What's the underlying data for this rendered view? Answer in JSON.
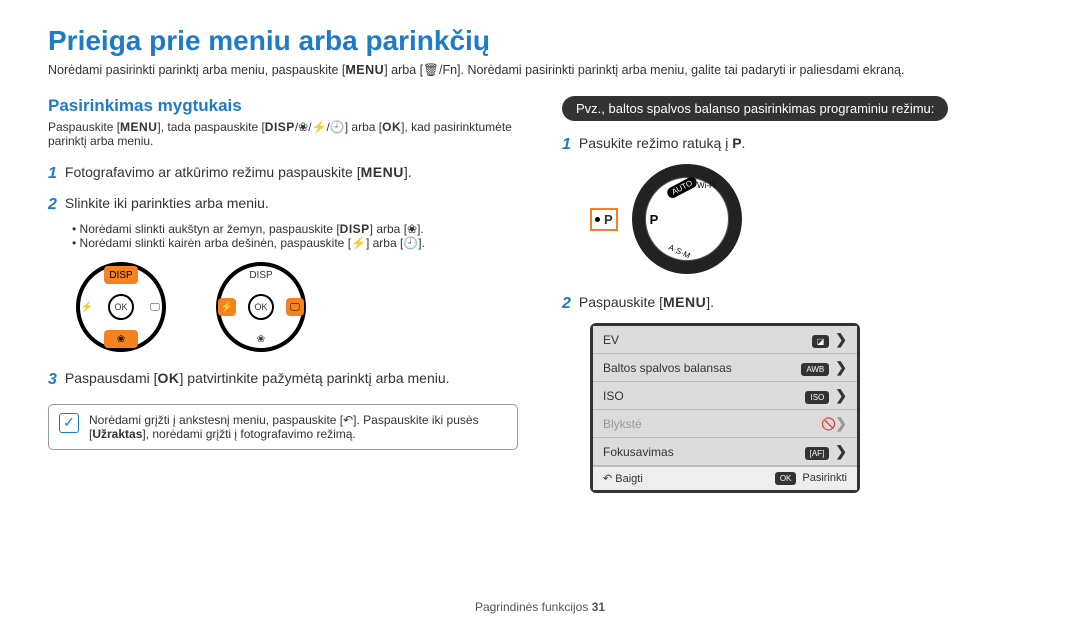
{
  "title": "Prieiga prie meniu arba parinkčių",
  "intro_pre": "Norėdami pasirinkti parinktį arba meniu, paspauskite [",
  "intro_menu": "MENU",
  "intro_mid": "] arba [🗑/Fn]. Norėdami pasirinkti parinktį arba meniu, galite tai padaryti ir paliesdami ekraną.",
  "left": {
    "heading": "Pasirinkimas mygtukais",
    "sub_pre": "Paspauskite [",
    "sub_menu": "MENU",
    "sub_mid": "], tada paspauskite [",
    "sub_disp": "DISP",
    "sub_icons": "/❀/⚡/🕘",
    "sub_post1": "] arba [",
    "sub_ok": "OK",
    "sub_post2": "], kad pasirinktumėte parinktį arba meniu.",
    "step1_num": "1",
    "step1_pre": "Fotografavimo ar atkūrimo režimu paspauskite [",
    "step1_menu": "MENU",
    "step1_post": "].",
    "step2_num": "2",
    "step2": "Slinkite iki parinkties arba meniu.",
    "b1_pre": "Norėdami slinkti aukštyn ar žemyn, paspauskite [",
    "b1_disp": "DISP",
    "b1_mid": "] arba [❀].",
    "b2_pre": "Norėdami slinkti kairėn arba dešinėn, paspauskite [⚡] arba [🕘].",
    "dpad_disp": "DISP",
    "dpad_ok": "OK",
    "dpad_flower": "❀",
    "dpad_flash": "⚡",
    "dpad_timer": "🖵",
    "step3_num": "3",
    "step3_pre": "Paspausdami [",
    "step3_ok": "OK",
    "step3_post": "] patvirtinkite pažymėtą parinktį arba meniu.",
    "note_pre": "Norėdami grįžti į ankstesnį meniu, paspauskite [↶]. Paspauskite iki pusės [",
    "note_bold": "Užraktas",
    "note_post": "], norėdami grįžti į fotografavimo režimą."
  },
  "right": {
    "pill": "Pvz., baltos spalvos balanso pasirinkimas programiniu režimu:",
    "s1_num": "1",
    "s1_pre": "Pasukite režimo ratuką į ",
    "s1_p": "P",
    "s1_post": ".",
    "dial_p": "P",
    "dial_auto": "AUTO",
    "dial_wifi": "Wi-Fi",
    "dial_asm": "A·S·M",
    "s2_num": "2",
    "s2_pre": "Paspauskite [",
    "s2_menu": "MENU",
    "s2_post": "].",
    "lcd": {
      "row1": "EV",
      "row1_icon": "◪",
      "row2": "Baltos spalvos balansas",
      "row2_icon": "AWB",
      "row3": "ISO",
      "row3_icon": "ISO",
      "row4": "Blykstė",
      "row4_icon": "🚫",
      "row5": "Fokusavimas",
      "row5_icon": "[AF]",
      "chev": "❯",
      "foot_l": "↶ Baigti",
      "foot_r": "OK Pasirinkti"
    }
  },
  "footer_pre": "Pagrindinės funkcijos  ",
  "footer_page": "31"
}
